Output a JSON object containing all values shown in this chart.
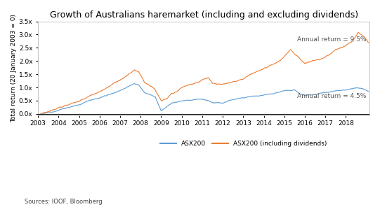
{
  "title": "Growth of Australians haremarket (including and excluding dividends)",
  "ylabel": "Total return (20 January 2003 = 0)",
  "source_text": "Sources: IOOF, Bloomberg",
  "legend_labels": [
    "ASX200",
    "ASX200 (including dividends)"
  ],
  "color_asx200": "#5B9BD5",
  "color_asx200_div": "#ED7D31",
  "annotation_div": "Annual return = 9.5%",
  "annotation_nodiv": "Annual return = 4.5%",
  "ylim": [
    -0.05,
    3.5
  ],
  "yticks": [
    0.0,
    0.5,
    1.0,
    1.5,
    2.0,
    2.5,
    3.0,
    3.5
  ],
  "ytick_labels": [
    "0.0x",
    "0.5x",
    "1.0x",
    "1.5x",
    "2.0x",
    "2.5x",
    "3.0x",
    "3.5x"
  ],
  "x_years": [
    2003,
    2004,
    2005,
    2006,
    2007,
    2008,
    2009,
    2010,
    2011,
    2012,
    2013,
    2014,
    2015,
    2016,
    2017,
    2018
  ],
  "background_color": "#FFFFFF",
  "title_fontsize": 9,
  "axis_fontsize": 6.5,
  "label_fontsize": 6.5,
  "annotation_fontsize": 6.5
}
